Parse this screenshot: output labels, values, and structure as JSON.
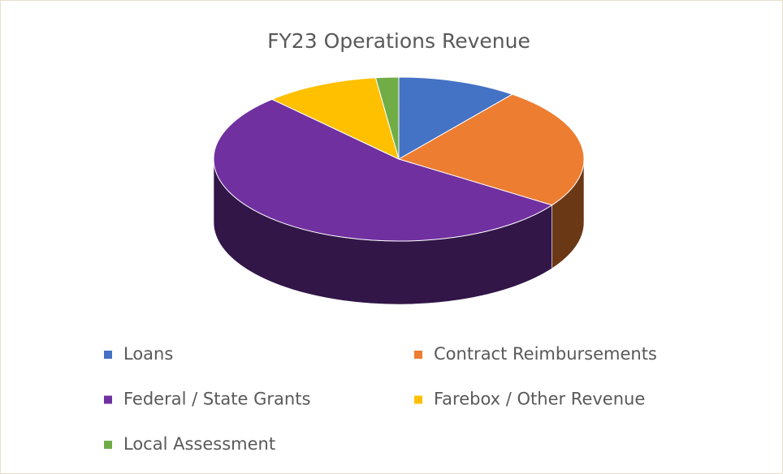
{
  "chart_data": {
    "type": "pie",
    "title": "FY23 Operations Revenue",
    "categories": [
      "Loans",
      "Contract Reimbursements",
      "Federal / State Grants",
      "Farebox / Other Revenue",
      "Local Assessment"
    ],
    "values": [
      10.5,
      24,
      53.5,
      10,
      2
    ],
    "colors": [
      "#4472c4",
      "#ed7d31",
      "#7030a0",
      "#ffc000",
      "#70ad47"
    ],
    "legend": "bottom"
  }
}
